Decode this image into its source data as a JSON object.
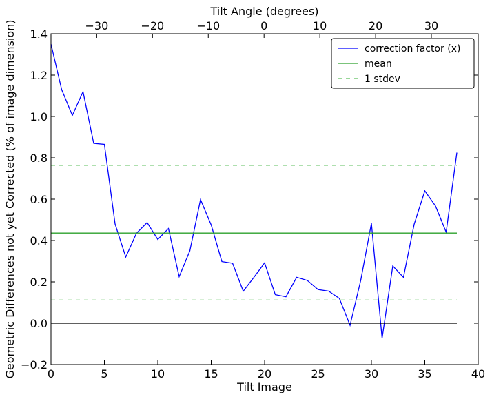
{
  "chart_data": {
    "type": "line",
    "xlabel": "Tilt Image",
    "ylabel": "Geometric Differences not yet Corrected (% of image dimension)",
    "top_xlabel": "Tilt Angle (degrees)",
    "xlim": [
      0,
      40
    ],
    "ylim": [
      -0.2,
      1.4
    ],
    "top_xlim": [
      -38.2,
      38.4
    ],
    "xticks": [
      0,
      5,
      10,
      15,
      20,
      25,
      30,
      35,
      40
    ],
    "xtick_labels": [
      "0",
      "5",
      "10",
      "15",
      "20",
      "25",
      "30",
      "35",
      "40"
    ],
    "yticks": [
      -0.2,
      0.0,
      0.2,
      0.4,
      0.6,
      0.8,
      1.0,
      1.2,
      1.4
    ],
    "ytick_labels": [
      "−0.2",
      "0.0",
      "0.2",
      "0.4",
      "0.6",
      "0.8",
      "1.0",
      "1.2",
      "1.4"
    ],
    "top_xticks": [
      -30,
      -20,
      -10,
      0,
      10,
      20,
      30
    ],
    "top_xtick_labels": [
      "−30",
      "−20",
      "−10",
      "0",
      "10",
      "20",
      "30"
    ],
    "grid": false,
    "legend_position": "top-right",
    "series": [
      {
        "name": "correction factor (x)",
        "color": "#0000ff",
        "style": "solid",
        "x": [
          0,
          1,
          2,
          3,
          4,
          5,
          6,
          7,
          8,
          9,
          10,
          11,
          12,
          13,
          14,
          15,
          16,
          17,
          18,
          19,
          20,
          21,
          22,
          23,
          24,
          25,
          26,
          27,
          28,
          29,
          30,
          31,
          32,
          33,
          34,
          35,
          36,
          37,
          38
        ],
        "y": [
          1.35,
          1.13,
          1.005,
          1.12,
          0.87,
          0.865,
          0.48,
          0.32,
          0.435,
          0.487,
          0.405,
          0.458,
          0.225,
          0.35,
          0.598,
          0.475,
          0.298,
          0.29,
          0.155,
          0.222,
          0.292,
          0.138,
          0.128,
          0.222,
          0.207,
          0.163,
          0.155,
          0.12,
          -0.01,
          0.207,
          0.483,
          -0.073,
          0.277,
          0.222,
          0.478,
          0.64,
          0.567,
          0.44,
          0.825
        ]
      },
      {
        "name": "mean",
        "color": "#2ca02c",
        "style": "solid",
        "x": [
          0,
          38
        ],
        "y": [
          0.436,
          0.436
        ]
      },
      {
        "name": "1 stdev",
        "color": "#5cbf5c",
        "style": "dashed",
        "x": [
          0,
          38
        ],
        "y": [
          0.764,
          0.764
        ]
      },
      {
        "name": "",
        "color": "#5cbf5c",
        "style": "dashed",
        "x": [
          0,
          38
        ],
        "y": [
          0.112,
          0.112
        ]
      },
      {
        "name": "",
        "color": "#000000",
        "style": "solid",
        "x": [
          0,
          38
        ],
        "y": [
          0,
          0
        ]
      }
    ]
  }
}
